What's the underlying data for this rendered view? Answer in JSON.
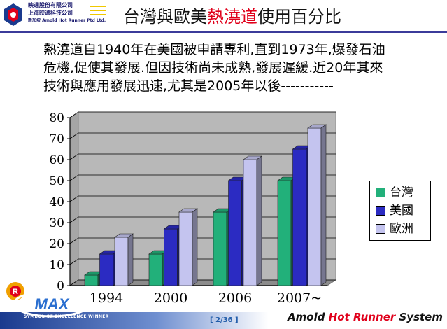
{
  "header": {
    "company_lines": [
      "映通股份有限公司",
      "上海映通科技公司",
      "新加坡 Amold Hot Runner Ptd Ltd."
    ],
    "title_pre": "台灣與歐美",
    "title_highlight": "熱澆道",
    "title_post": "使用百分比"
  },
  "body_text": [
    "熱澆道自1940年在美國被申請專利,直到1973年,爆發石油",
    "危機,促使其發展.但因技術尚未成熟,發展遲緩.近20年其來",
    "技術與應用發展迅速,尤其是2005年以後-----------"
  ],
  "chart_data": {
    "type": "bar",
    "style": "3d-clustered",
    "categories": [
      "1994",
      "2000",
      "2006",
      "2007~"
    ],
    "series": [
      {
        "name": "台灣",
        "values": [
          5,
          15,
          35,
          50
        ],
        "color": "#22b07a"
      },
      {
        "name": "美國",
        "values": [
          15,
          27,
          50,
          65
        ],
        "color": "#2b2bc2"
      },
      {
        "name": "歐洲",
        "values": [
          23,
          35,
          60,
          75
        ],
        "color": "#c4c4ef"
      }
    ],
    "yticks": [
      "0",
      "10",
      "20",
      "30",
      "40",
      "50",
      "60",
      "70",
      "80"
    ],
    "ylim": [
      0,
      80
    ],
    "grid": true,
    "legend_position": "right"
  },
  "footer": {
    "page": "[ 2/36 ]",
    "brand_pre": "Amold ",
    "brand_hot": "Hot Runner",
    "brand_post": " System",
    "badge_text": "SYMBOL OF EXCELLENCE WINNER"
  },
  "colors": {
    "accent_red": "#e0001b",
    "rule_blue": "#3b3b9a",
    "wall": "#b8b8b8"
  }
}
